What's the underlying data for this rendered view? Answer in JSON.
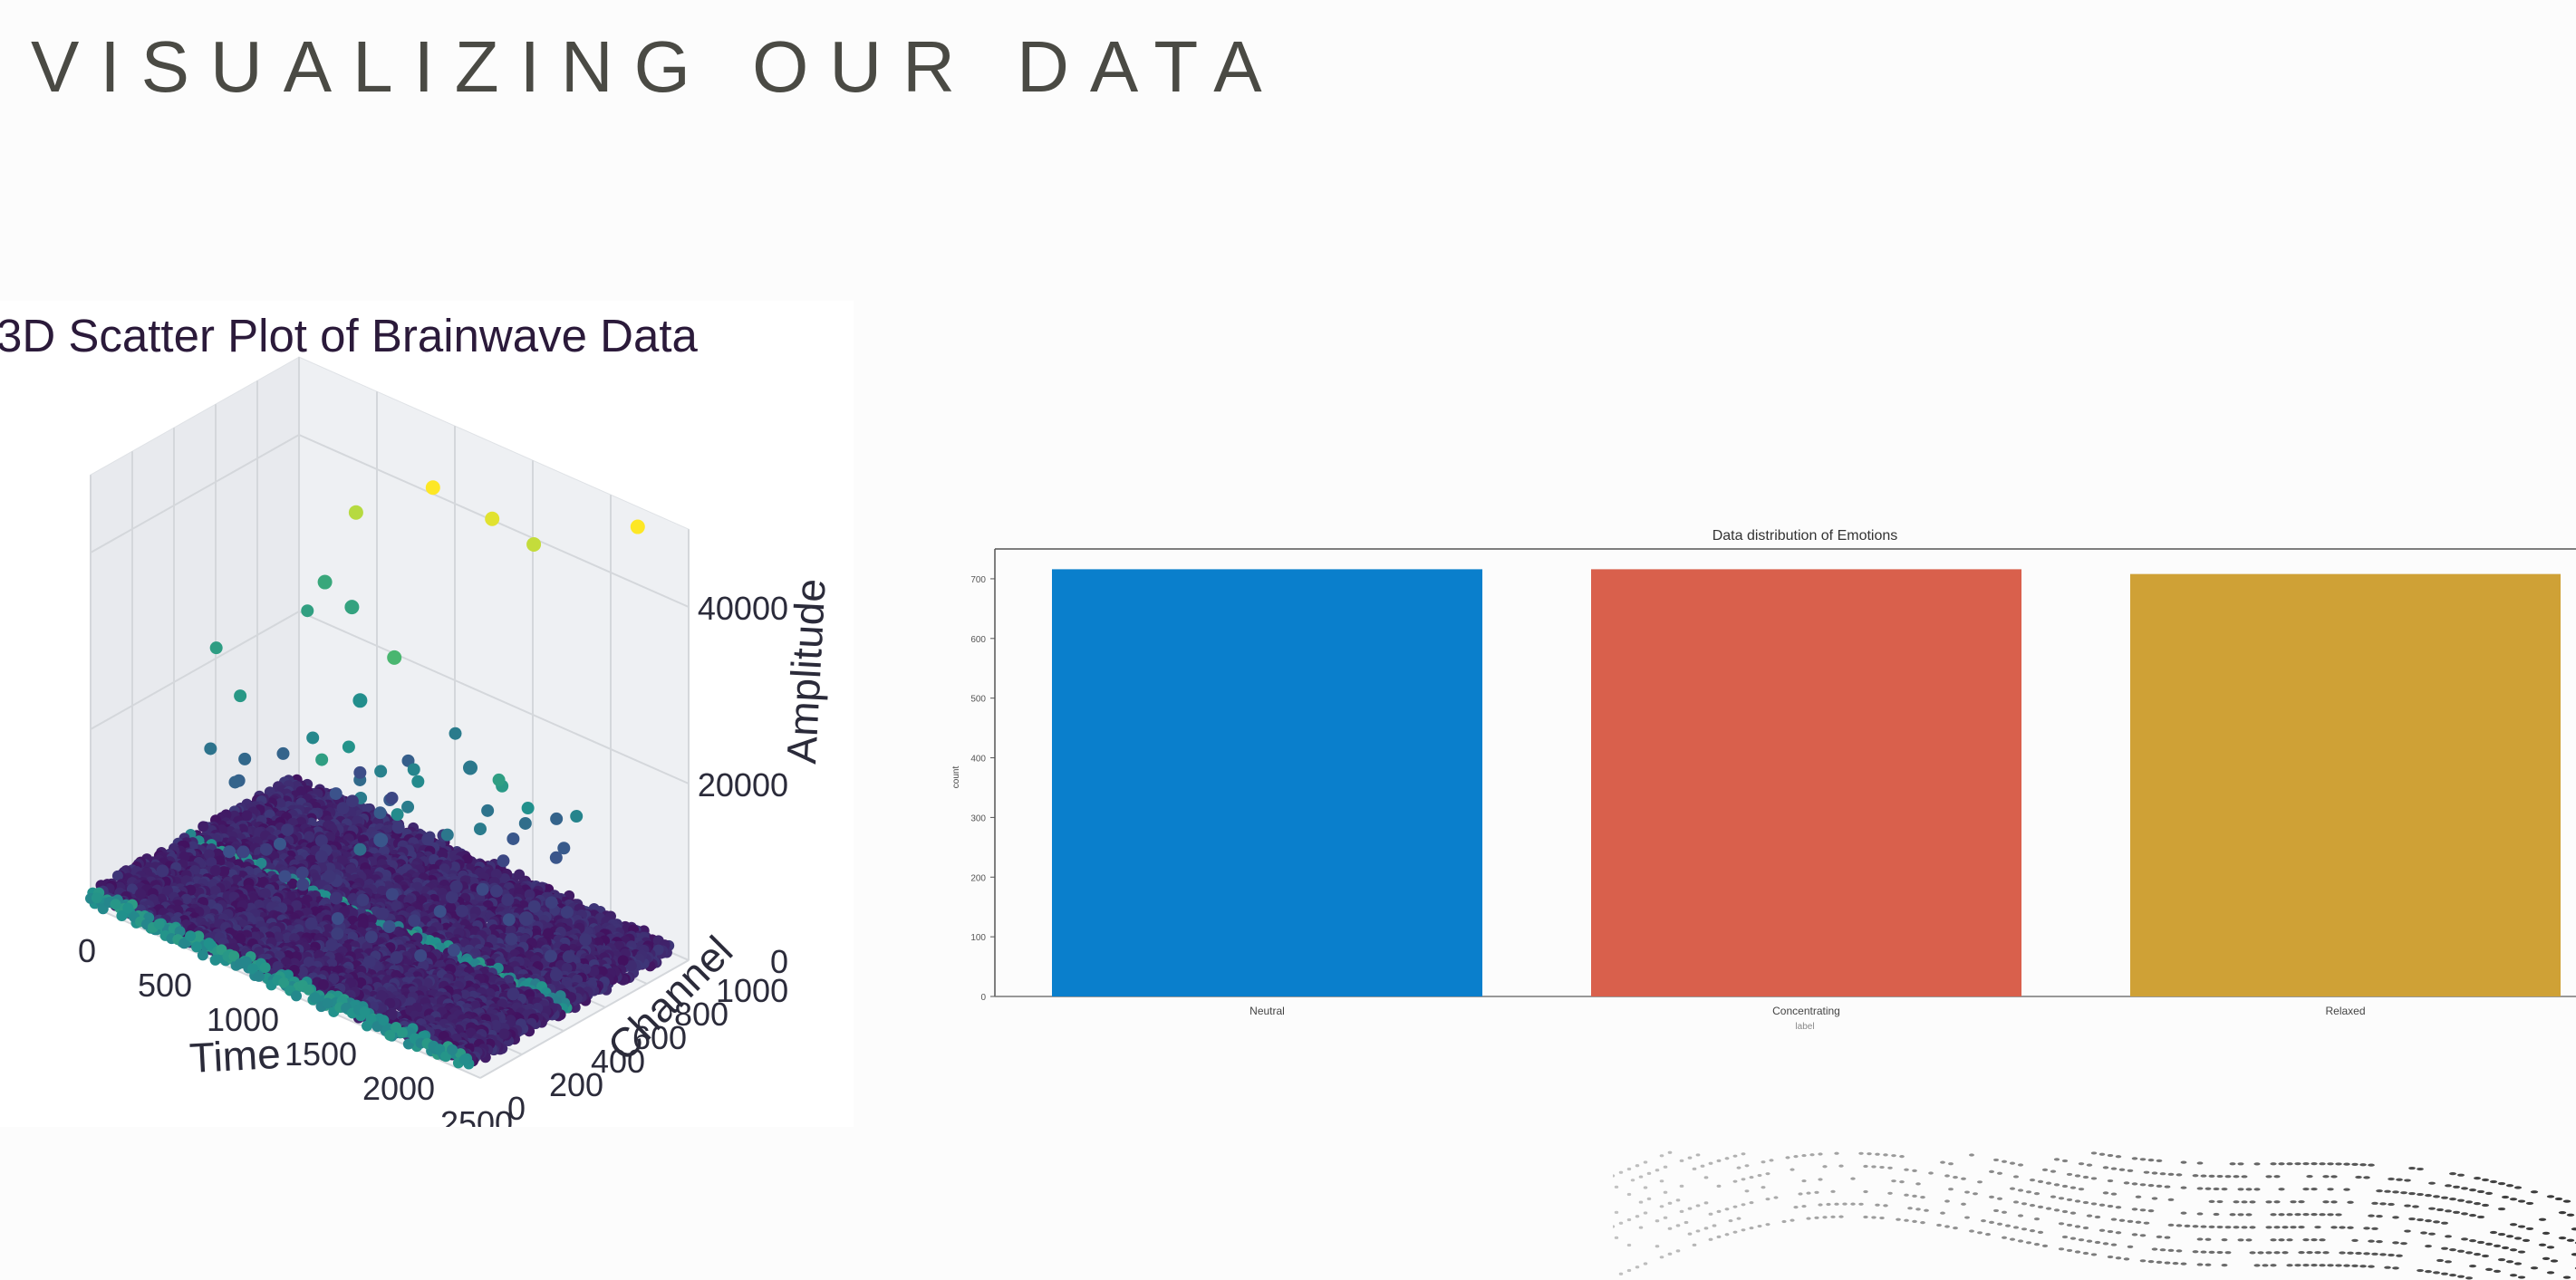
{
  "slide": {
    "title": "VISUALIZING OUR DATA"
  },
  "chart_data": [
    {
      "type": "scatter3d",
      "title": "3D Scatter Plot of Brainwave Data",
      "xlabel": "Time",
      "ylabel": "Channel",
      "zlabel": "Amplitude",
      "xlim": [
        0,
        2500
      ],
      "ylim": [
        0,
        1000
      ],
      "zlim": [
        0,
        40000
      ],
      "x_ticks": [
        "0",
        "500",
        "1000",
        "1500",
        "2000",
        "2500"
      ],
      "y_ticks": [
        "0",
        "200",
        "400",
        "600",
        "800",
        "1000"
      ],
      "z_ticks": [
        "0",
        "20000",
        "40000"
      ],
      "colormap": "viridis",
      "grid": true,
      "outlier_points": [
        {
          "x": 2200,
          "y": 980,
          "z": 47000
        },
        {
          "x": 1600,
          "y": 930,
          "z": 41000
        },
        {
          "x": 1400,
          "y": 880,
          "z": 43000
        },
        {
          "x": 1100,
          "y": 820,
          "z": 45000
        },
        {
          "x": 700,
          "y": 750,
          "z": 40000
        },
        {
          "x": 1200,
          "y": 560,
          "z": 30000
        },
        {
          "x": 300,
          "y": 900,
          "z": 27000
        },
        {
          "x": 500,
          "y": 880,
          "z": 26000
        },
        {
          "x": 1500,
          "y": 700,
          "z": 18000
        },
        {
          "x": 1300,
          "y": 420,
          "z": 12000
        },
        {
          "x": 900,
          "y": 620,
          "z": 22000
        },
        {
          "x": 2100,
          "y": 520,
          "z": 8000
        }
      ]
    },
    {
      "type": "bar",
      "title": "Data distribution of Emotions",
      "xlabel": "label",
      "ylabel": "count",
      "categories": [
        "Neutral",
        "Concentrating",
        "Relaxed"
      ],
      "values": [
        716,
        716,
        708
      ],
      "colors": [
        "#0a7fcc",
        "#d9604c",
        "#cfa136"
      ],
      "ylim": [
        0,
        750
      ],
      "y_ticks": [
        0,
        100,
        200,
        300,
        400,
        500,
        600,
        700
      ],
      "grid": false
    }
  ]
}
